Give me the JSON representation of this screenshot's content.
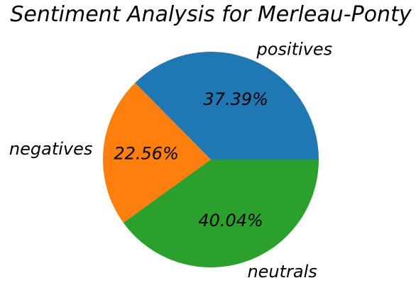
{
  "chart_data": {
    "type": "pie",
    "title": "Sentiment Analysis for Merleau-Ponty",
    "categories": [
      "positives",
      "negatives",
      "neutrals"
    ],
    "values": [
      37.39,
      22.56,
      40.04
    ],
    "value_labels": [
      "37.39%",
      "22.56%",
      "40.04%"
    ],
    "colors": [
      "#1f77b4",
      "#ff7f0e",
      "#2ca02c"
    ],
    "start_angle_deg": 0,
    "direction": "counterclockwise",
    "legend": "none"
  }
}
